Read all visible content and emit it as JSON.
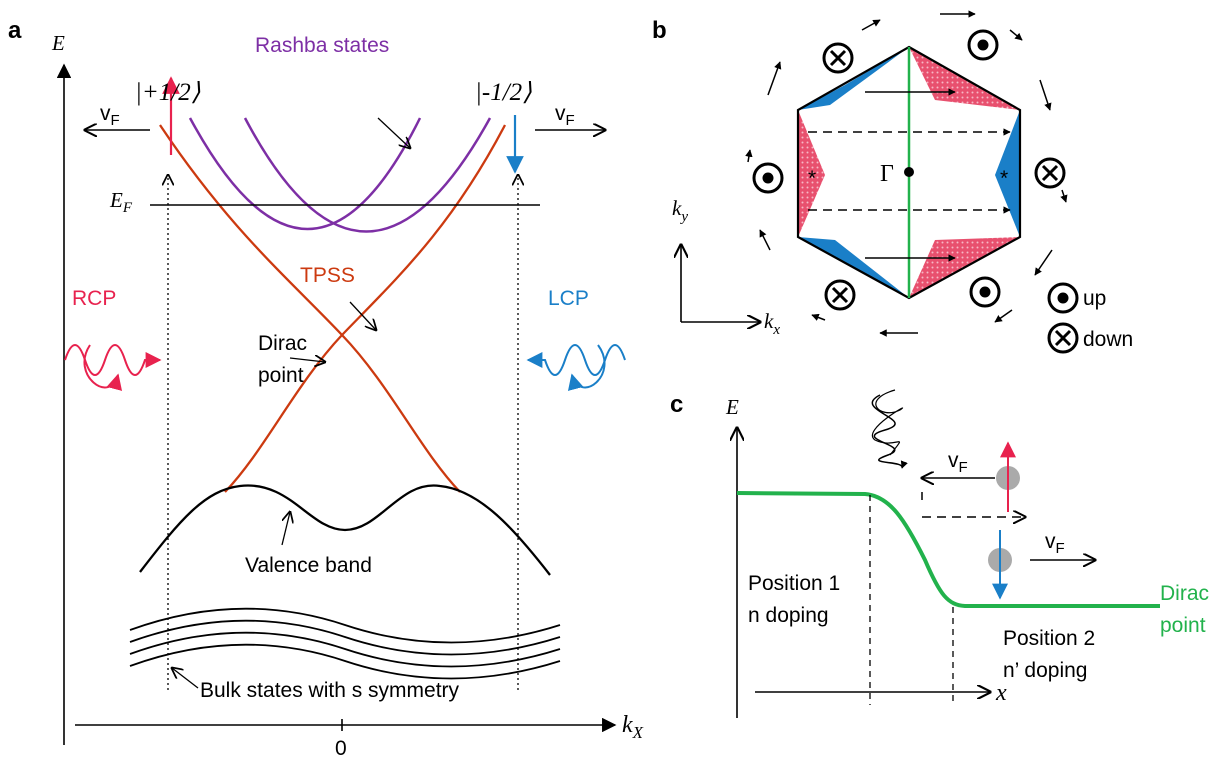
{
  "panel_a": {
    "label": "a",
    "axis_e": "E",
    "axis_k": {
      "main": "k",
      "sub": "X"
    },
    "origin": "0",
    "ket_plus": "|+1/2⟩",
    "ket_minus": "|-1/2⟩",
    "rashba": "Rashba states",
    "vf_left": {
      "main": "v",
      "sub": "F"
    },
    "vf_right": {
      "main": "v",
      "sub": "F"
    },
    "fermi": {
      "main": "E",
      "sub": "F"
    },
    "tpss": "TPSS",
    "rcp": "RCP",
    "lcp": "LCP",
    "dirac": [
      "Dirac",
      "point"
    ],
    "valence": "Valence band",
    "bulk": "Bulk states with s symmetry"
  },
  "panel_b": {
    "label": "b",
    "gamma": "Γ",
    "star_left": "*",
    "star_right": "*",
    "axis_ky": {
      "main": "k",
      "sub": "y"
    },
    "axis_kx": {
      "main": "k",
      "sub": "x"
    },
    "up": "up",
    "down": "down"
  },
  "panel_c": {
    "label": "c",
    "axis_e": "E",
    "axis_x": "x",
    "vf_top": {
      "main": "v",
      "sub": "F"
    },
    "vf_bottom": {
      "main": "v",
      "sub": "F"
    },
    "position_1": [
      "Position 1",
      "n doping"
    ],
    "position_2": [
      "Position 2",
      "n’ doping"
    ],
    "dirac": [
      "Dirac",
      "point"
    ]
  }
}
